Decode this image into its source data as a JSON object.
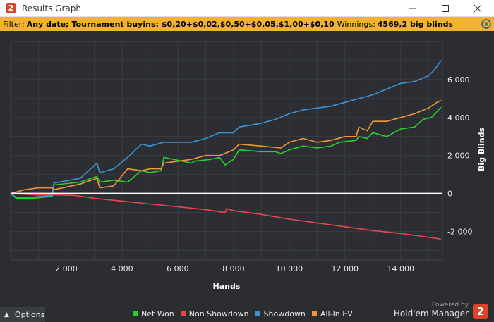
{
  "window": {
    "title": "Results Graph",
    "logo": "2"
  },
  "filter": {
    "prefix": "Filter:",
    "date": "Any date;",
    "buyins_label": "Tournament buyins:",
    "buyins_value": "$0,20+$0,02,$0,50+$0,05,$1,00+$0,10",
    "winnings_label": "Winnings:",
    "winnings_value": "4569,2 big blinds"
  },
  "footer": {
    "options_label": "Options",
    "powered_by": "Powered by",
    "brand": "Hold'em Manager",
    "brand_logo": "2"
  },
  "chart_data": {
    "type": "line",
    "xlabel": "Hands",
    "ylabel": "Big Blinds",
    "xlim": [
      0,
      15500
    ],
    "ylim": [
      -3500,
      8000
    ],
    "x_ticks": [
      2000,
      4000,
      6000,
      8000,
      10000,
      12000,
      14000
    ],
    "x_tick_labels": [
      "2 000",
      "4 000",
      "6 000",
      "8 000",
      "10 000",
      "12 000",
      "14 000"
    ],
    "y_ticks": [
      -2000,
      0,
      2000,
      4000,
      6000
    ],
    "y_tick_labels": [
      "-2 000",
      "0",
      "2 000",
      "4 000",
      "6 000"
    ],
    "grid": true,
    "legend_position": "bottom",
    "series": [
      {
        "name": "Net Won",
        "color": "#2bd12b",
        "points": [
          [
            0,
            0
          ],
          [
            200,
            -250
          ],
          [
            800,
            -250
          ],
          [
            1500,
            -150
          ],
          [
            1550,
            450
          ],
          [
            2500,
            600
          ],
          [
            3100,
            900
          ],
          [
            3200,
            600
          ],
          [
            3700,
            700
          ],
          [
            4200,
            600
          ],
          [
            4700,
            1200
          ],
          [
            5000,
            1100
          ],
          [
            5400,
            1200
          ],
          [
            5500,
            1900
          ],
          [
            6500,
            1600
          ],
          [
            6600,
            1700
          ],
          [
            7200,
            1800
          ],
          [
            7500,
            1900
          ],
          [
            7700,
            1500
          ],
          [
            8000,
            1800
          ],
          [
            8200,
            2300
          ],
          [
            9000,
            2200
          ],
          [
            9500,
            2200
          ],
          [
            9700,
            2100
          ],
          [
            10000,
            2300
          ],
          [
            10500,
            2500
          ],
          [
            11000,
            2400
          ],
          [
            11500,
            2500
          ],
          [
            11800,
            2700
          ],
          [
            12400,
            2800
          ],
          [
            12500,
            3000
          ],
          [
            12800,
            2900
          ],
          [
            13000,
            3200
          ],
          [
            13500,
            3000
          ],
          [
            14000,
            3400
          ],
          [
            14500,
            3500
          ],
          [
            14800,
            3900
          ],
          [
            15100,
            4000
          ],
          [
            15300,
            4300
          ],
          [
            15450,
            4550
          ]
        ]
      },
      {
        "name": "Non Showdown",
        "color": "#e8484c",
        "points": [
          [
            0,
            0
          ],
          [
            500,
            -40
          ],
          [
            1000,
            -80
          ],
          [
            1500,
            -70
          ],
          [
            2300,
            -100
          ],
          [
            3000,
            -250
          ],
          [
            4000,
            -400
          ],
          [
            5000,
            -550
          ],
          [
            6000,
            -700
          ],
          [
            7000,
            -850
          ],
          [
            7700,
            -1000
          ],
          [
            7750,
            -800
          ],
          [
            8000,
            -900
          ],
          [
            9000,
            -1100
          ],
          [
            10000,
            -1350
          ],
          [
            11000,
            -1550
          ],
          [
            12000,
            -1750
          ],
          [
            13000,
            -1950
          ],
          [
            14000,
            -2100
          ],
          [
            15000,
            -2300
          ],
          [
            15450,
            -2400
          ]
        ]
      },
      {
        "name": "Showdown",
        "color": "#3b93d9",
        "points": [
          [
            0,
            0
          ],
          [
            200,
            -200
          ],
          [
            800,
            -200
          ],
          [
            1500,
            -100
          ],
          [
            1550,
            550
          ],
          [
            2500,
            800
          ],
          [
            3100,
            1600
          ],
          [
            3200,
            1100
          ],
          [
            3700,
            1300
          ],
          [
            4200,
            1900
          ],
          [
            4700,
            2600
          ],
          [
            5000,
            2500
          ],
          [
            5500,
            2700
          ],
          [
            6500,
            2700
          ],
          [
            7000,
            2900
          ],
          [
            7500,
            3200
          ],
          [
            8000,
            3200
          ],
          [
            8200,
            3500
          ],
          [
            9000,
            3700
          ],
          [
            9500,
            3900
          ],
          [
            10000,
            4200
          ],
          [
            10500,
            4400
          ],
          [
            11000,
            4500
          ],
          [
            11500,
            4600
          ],
          [
            12000,
            4800
          ],
          [
            12500,
            5000
          ],
          [
            13000,
            5200
          ],
          [
            13500,
            5500
          ],
          [
            14000,
            5800
          ],
          [
            14500,
            5900
          ],
          [
            15000,
            6200
          ],
          [
            15200,
            6500
          ],
          [
            15450,
            7000
          ]
        ]
      },
      {
        "name": "All-In EV",
        "color": "#f0963a",
        "points": [
          [
            0,
            0
          ],
          [
            500,
            200
          ],
          [
            1000,
            300
          ],
          [
            1500,
            300
          ],
          [
            1550,
            200
          ],
          [
            2500,
            500
          ],
          [
            3100,
            800
          ],
          [
            3200,
            300
          ],
          [
            3700,
            400
          ],
          [
            4200,
            1300
          ],
          [
            4700,
            1200
          ],
          [
            5000,
            1300
          ],
          [
            5400,
            1300
          ],
          [
            5500,
            1600
          ],
          [
            6000,
            1700
          ],
          [
            6500,
            1800
          ],
          [
            7000,
            2000
          ],
          [
            7500,
            2000
          ],
          [
            8000,
            2300
          ],
          [
            8200,
            2600
          ],
          [
            9000,
            2500
          ],
          [
            9700,
            2400
          ],
          [
            10000,
            2700
          ],
          [
            10500,
            2900
          ],
          [
            11000,
            2700
          ],
          [
            11500,
            2800
          ],
          [
            12000,
            3000
          ],
          [
            12400,
            3000
          ],
          [
            12500,
            3500
          ],
          [
            12800,
            3300
          ],
          [
            13000,
            3800
          ],
          [
            13500,
            3800
          ],
          [
            14000,
            4000
          ],
          [
            14500,
            4200
          ],
          [
            15000,
            4500
          ],
          [
            15300,
            4800
          ],
          [
            15450,
            4900
          ]
        ]
      }
    ]
  }
}
